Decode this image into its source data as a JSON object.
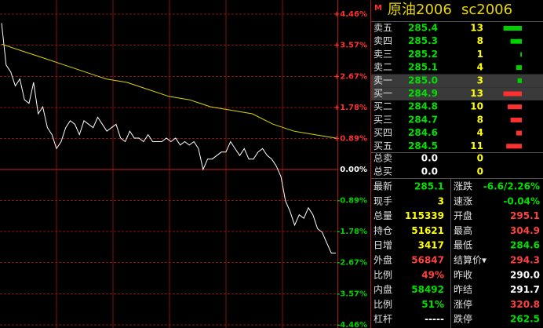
{
  "header": {
    "marker": "M",
    "title": "原油2006",
    "code": "sc2006"
  },
  "chart": {
    "type": "line",
    "ylim": [
      -4.46,
      4.46
    ],
    "yticks": [
      {
        "value": 4.46,
        "label": "+4.46%"
      },
      {
        "value": 3.57,
        "label": "+3.57%"
      },
      {
        "value": 2.67,
        "label": "+2.67%"
      },
      {
        "value": 1.78,
        "label": "+1.78%"
      },
      {
        "value": 0.89,
        "label": "+0.89%"
      },
      {
        "value": 0,
        "label": "0.00%"
      },
      {
        "value": -0.89,
        "label": "-0.89%"
      },
      {
        "value": -1.78,
        "label": "-1.78%"
      },
      {
        "value": -2.67,
        "label": "-2.67%"
      },
      {
        "value": -3.57,
        "label": "-3.57%"
      },
      {
        "value": -4.46,
        "label": "-4.46%"
      }
    ],
    "series": [
      {
        "color": "#ffffff",
        "values": [
          4.2,
          3.0,
          2.8,
          2.4,
          2.6,
          2.0,
          1.9,
          2.5,
          1.6,
          1.8,
          1.2,
          1.0,
          0.6,
          0.8,
          1.2,
          1.4,
          1.3,
          1.0,
          1.4,
          1.3,
          1.2,
          1.5,
          1.3,
          1.1,
          1.2,
          1.3,
          0.9,
          0.8,
          1.1,
          0.9,
          0.9,
          0.8,
          1.0,
          0.8,
          0.8,
          0.8,
          0.9,
          0.8,
          0.9,
          0.7,
          0.8,
          0.7,
          0.8,
          0.6,
          0.0,
          0.3,
          0.3,
          0.4,
          0.5,
          0.5,
          0.8,
          0.6,
          0.4,
          0.6,
          0.3,
          0.3,
          0.5,
          0.6,
          0.4,
          0.3,
          0.1,
          -0.2,
          -0.9,
          -1.2,
          -1.6,
          -1.3,
          -1.4,
          -1.1,
          -1.3,
          -1.7,
          -1.8,
          -2.1,
          -2.4,
          -2.4
        ]
      },
      {
        "color": "#d8d800",
        "values": [
          3.6,
          3.4,
          3.2,
          3.0,
          2.8,
          2.6,
          2.5,
          2.3,
          2.1,
          2.0,
          1.8,
          1.7,
          1.6,
          1.3,
          1.1,
          1.0,
          0.9
        ]
      }
    ]
  },
  "order_book": {
    "rows": [
      {
        "label": "卖五",
        "price": "285.4",
        "volume": 13,
        "side": "sell"
      },
      {
        "label": "卖四",
        "price": "285.3",
        "volume": 8,
        "side": "sell"
      },
      {
        "label": "卖三",
        "price": "285.2",
        "volume": 1,
        "side": "sell"
      },
      {
        "label": "卖二",
        "price": "285.1",
        "volume": 4,
        "side": "sell"
      },
      {
        "label": "卖一",
        "price": "285.0",
        "volume": 3,
        "side": "sell"
      },
      {
        "label": "买一",
        "price": "284.9",
        "volume": 13,
        "side": "buy"
      },
      {
        "label": "买二",
        "price": "284.8",
        "volume": 10,
        "side": "buy"
      },
      {
        "label": "买三",
        "price": "284.7",
        "volume": 8,
        "side": "buy"
      },
      {
        "label": "买四",
        "price": "284.6",
        "volume": 4,
        "side": "buy"
      },
      {
        "label": "买五",
        "price": "284.5",
        "volume": 11,
        "side": "buy"
      }
    ],
    "totals": [
      {
        "label": "总卖",
        "price": "0.0",
        "volume": 0
      },
      {
        "label": "总买",
        "price": "0.0",
        "volume": 0
      }
    ]
  },
  "stats": [
    [
      {
        "label": "最新",
        "value": "285.1",
        "color": "#00e000"
      },
      {
        "label": "涨跌",
        "value": "-6.6/2.26%",
        "color": "#00e000"
      }
    ],
    [
      {
        "label": "现手",
        "value": "3",
        "color": "#ffff00"
      },
      {
        "label": "速涨",
        "value": "-0.04%",
        "color": "#00e000"
      }
    ],
    [
      {
        "label": "总量",
        "value": "115339",
        "color": "#ffff00"
      },
      {
        "label": "开盘",
        "value": "295.1",
        "color": "#ff4040"
      }
    ],
    [
      {
        "label": "持仓",
        "value": "51621",
        "color": "#ffff00"
      },
      {
        "label": "最高",
        "value": "304.9",
        "color": "#ff4040"
      }
    ],
    [
      {
        "label": "日增",
        "value": "3417",
        "color": "#ffff00"
      },
      {
        "label": "最低",
        "value": "284.6",
        "color": "#00e000"
      }
    ],
    [
      {
        "label": "外盘",
        "value": "56847",
        "color": "#ff4040"
      },
      {
        "label": "结算价▾",
        "value": "294.3",
        "color": "#ff4040"
      }
    ],
    [
      {
        "label": "比例",
        "value": "49%",
        "color": "#ff4040"
      },
      {
        "label": "昨收",
        "value": "290.0",
        "color": "#ffffff"
      }
    ],
    [
      {
        "label": "内盘",
        "value": "58492",
        "color": "#00e000"
      },
      {
        "label": "昨结",
        "value": "291.7",
        "color": "#ffffff"
      }
    ],
    [
      {
        "label": "比例",
        "value": "51%",
        "color": "#00e000"
      },
      {
        "label": "涨停",
        "value": "320.8",
        "color": "#ff4040"
      }
    ],
    [
      {
        "label": "杠杆",
        "value": "-----",
        "color": "#ffffff"
      },
      {
        "label": "跌停",
        "value": "262.5",
        "color": "#00e000"
      }
    ]
  ]
}
